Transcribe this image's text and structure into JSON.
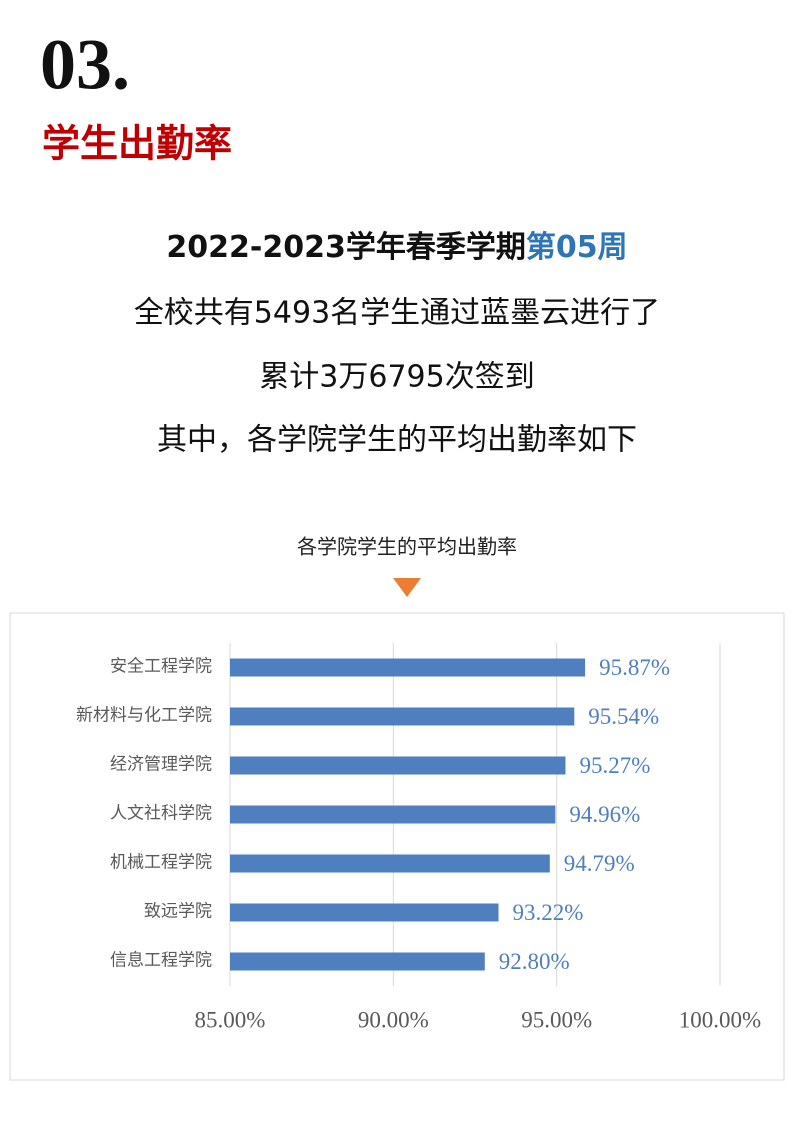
{
  "header": {
    "number": "03.",
    "title": "学生出勤率"
  },
  "intro": {
    "line1": {
      "text": "2022-2023学年春季学期",
      "highlight": "第05周"
    },
    "line2": "全校共有5493名学生通过蓝墨云进行了",
    "line3": "累计3万6795次签到",
    "line4": "其中，各学院学生的平均出勤率如下"
  },
  "chart_data": {
    "type": "bar",
    "orientation": "horizontal",
    "title": "各学院学生的平均出勤率",
    "categories": [
      "安全工程学院",
      "新材料与化工学院",
      "经济管理学院",
      "人文社科学院",
      "机械工程学院",
      "致远学院",
      "信息工程学院"
    ],
    "values": [
      95.87,
      95.54,
      95.27,
      94.96,
      94.79,
      93.22,
      92.8
    ],
    "value_labels": [
      "95.87%",
      "95.54%",
      "95.27%",
      "94.96%",
      "94.79%",
      "93.22%",
      "92.80%"
    ],
    "color": "#4f7fbf",
    "xlim": [
      85,
      100
    ],
    "xticks": [
      {
        "value": 85,
        "label": "85.00%"
      },
      {
        "value": 90,
        "label": "90.00%"
      },
      {
        "value": 95,
        "label": "95.00%"
      },
      {
        "value": 100,
        "label": "100.00%"
      }
    ],
    "grid": true
  }
}
